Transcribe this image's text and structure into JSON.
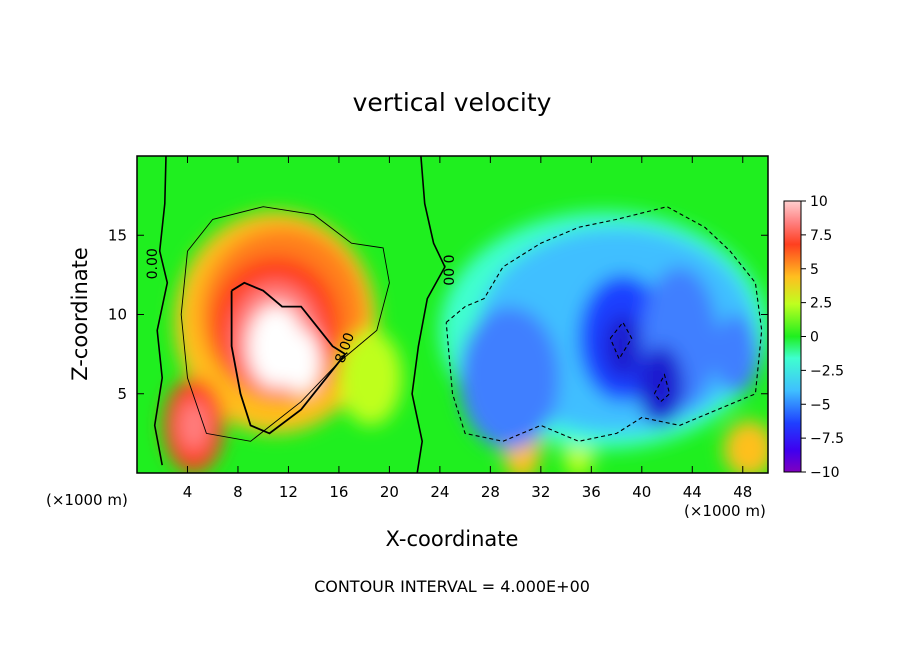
{
  "chart_data": {
    "type": "heatmap",
    "title": "vertical velocity",
    "xlabel": "X-coordinate",
    "ylabel": "Z-coordinate",
    "x_unit_left": "(×1000 m)",
    "x_unit_right": "(×1000 m)",
    "x_ticks": [
      "4",
      "8",
      "12",
      "16",
      "20",
      "24",
      "28",
      "32",
      "36",
      "40",
      "44",
      "48"
    ],
    "y_ticks": [
      "5",
      "10",
      "15"
    ],
    "xlim": [
      0,
      50
    ],
    "ylim": [
      0,
      20
    ],
    "colorbar": {
      "ticks": [
        "10",
        "7.5",
        "5",
        "2.5",
        "0",
        "−2.5",
        "−5",
        "−7.5",
        "−10"
      ],
      "range": [
        -10,
        10
      ]
    },
    "contour_labels": [
      "0.00",
      "0.00",
      "8.00"
    ],
    "contour_interval_note": "CONTOUR INTERVAL = 4.000E+00",
    "features": [
      {
        "kind": "updraft",
        "x": 11,
        "z": 9,
        "peak": 10
      },
      {
        "kind": "updraft",
        "x": 4.5,
        "z": 2.8,
        "peak": 9
      },
      {
        "kind": "downdraft",
        "x": 30,
        "z": 6,
        "peak": -6
      },
      {
        "kind": "downdraft",
        "x": 39,
        "z": 8.5,
        "peak": -8
      },
      {
        "kind": "downdraft",
        "x": 42,
        "z": 5.5,
        "peak": -8
      }
    ],
    "grid": false,
    "colormap": [
      "#7f00bf",
      "#1f1fcf",
      "#3f7fff",
      "#3fbfff",
      "#3fffcf",
      "#1fef1f",
      "#bfff1f",
      "#ffbf1f",
      "#ff3f1f",
      "#ffffff"
    ]
  }
}
